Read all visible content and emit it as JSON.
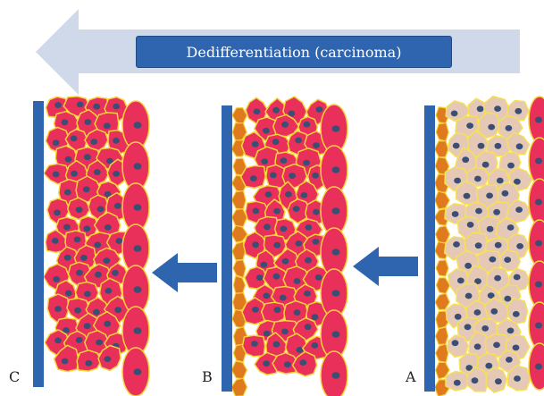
{
  "banner": {
    "label": "Dedifferentiation (carcinoma)"
  },
  "panels": [
    {
      "label": "C",
      "state": "dedifferentiated",
      "cells": "tumor"
    },
    {
      "label": "B",
      "state": "intermediate",
      "cells": "tumor-with-basal"
    },
    {
      "label": "A",
      "state": "differentiated",
      "cells": "normal"
    }
  ],
  "colors": {
    "arrow_big": "#c7d2e6",
    "banner": "#2f64ae",
    "membrane": "#2f64ae",
    "arrow_small": "#2f64ae",
    "tumor_cell": "#e8305a",
    "tumor_outline": "#f5d33a",
    "nucleus": "#3a4f73",
    "basal_cell": "#e07a1e",
    "normal_cell": "#e5c9b6",
    "normal_outline": "#f5e05a"
  }
}
